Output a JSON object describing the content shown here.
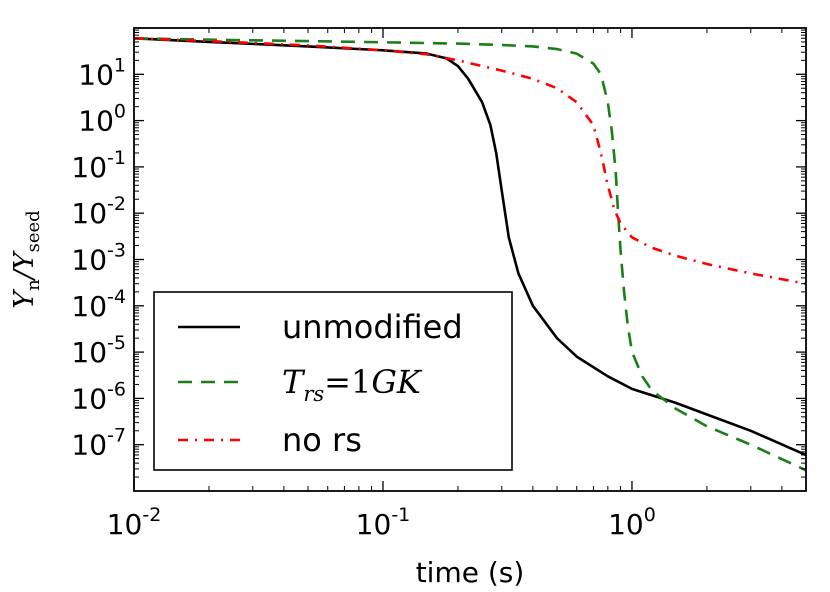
{
  "chart_data": {
    "type": "line",
    "xscale": "log",
    "yscale": "log",
    "xlim": [
      0.01,
      5.0
    ],
    "ylim": [
      1e-08,
      100
    ],
    "xlabel": "time (s)",
    "ylabel": {
      "var": "Y",
      "num_sub": "n",
      "slash": "/",
      "den_sub": "seed"
    },
    "x_ticks": [
      {
        "value": 0.01,
        "base": "10",
        "exp": "-2"
      },
      {
        "value": 0.1,
        "base": "10",
        "exp": "-1"
      },
      {
        "value": 1,
        "base": "10",
        "exp": "0"
      }
    ],
    "y_ticks": [
      {
        "value": 1e-07,
        "base": "10",
        "exp": "-7"
      },
      {
        "value": 1e-06,
        "base": "10",
        "exp": "-6"
      },
      {
        "value": 1e-05,
        "base": "10",
        "exp": "-5"
      },
      {
        "value": 0.0001,
        "base": "10",
        "exp": "-4"
      },
      {
        "value": 0.001,
        "base": "10",
        "exp": "-3"
      },
      {
        "value": 0.01,
        "base": "10",
        "exp": "-2"
      },
      {
        "value": 0.1,
        "base": "10",
        "exp": "-1"
      },
      {
        "value": 1,
        "base": "10",
        "exp": "0"
      },
      {
        "value": 10,
        "base": "10",
        "exp": "1"
      }
    ],
    "legend": {
      "position": "lower-left",
      "entries": [
        "unmodified",
        "T_rs=1GK",
        "no rs"
      ],
      "trs_label": {
        "var": "T",
        "sub": "rs",
        "eq": "=",
        "value": "1",
        "unit": "GK"
      }
    },
    "series": [
      {
        "name": "unmodified",
        "color": "#000000",
        "style": "solid",
        "x": [
          0.01,
          0.02,
          0.05,
          0.1,
          0.15,
          0.18,
          0.2,
          0.22,
          0.25,
          0.27,
          0.285,
          0.3,
          0.32,
          0.35,
          0.4,
          0.5,
          0.6,
          0.8,
          1.0,
          1.5,
          2.0,
          3.0,
          5.0
        ],
        "y": [
          60,
          50,
          40,
          33,
          28,
          22,
          15,
          8,
          2.5,
          0.8,
          0.2,
          0.03,
          0.003,
          0.0005,
          0.0001,
          2e-05,
          8e-06,
          3e-06,
          1.6e-06,
          8e-07,
          4.5e-07,
          2e-07,
          6e-08
        ]
      },
      {
        "name": "T_rs=1GK",
        "color": "#1a7f1a",
        "style": "dashed",
        "x": [
          0.01,
          0.02,
          0.05,
          0.1,
          0.2,
          0.3,
          0.4,
          0.5,
          0.6,
          0.7,
          0.75,
          0.8,
          0.83,
          0.86,
          0.88,
          0.9,
          0.93,
          0.96,
          1.0,
          1.1,
          1.2,
          1.5,
          2.0,
          3.0,
          5.0
        ],
        "y": [
          60,
          56,
          52,
          49,
          46,
          43,
          40,
          35,
          28,
          17,
          10,
          2.5,
          0.6,
          0.08,
          0.01,
          0.0015,
          0.0002,
          4e-05,
          1e-05,
          3e-06,
          1.5e-06,
          6e-07,
          2.5e-07,
          1e-07,
          2.8e-08
        ]
      },
      {
        "name": "no rs",
        "color": "#ff0000",
        "style": "dashdot",
        "x": [
          0.01,
          0.02,
          0.05,
          0.1,
          0.15,
          0.2,
          0.3,
          0.4,
          0.5,
          0.6,
          0.7,
          0.75,
          0.8,
          0.85,
          0.9,
          1.0,
          1.2,
          1.5,
          2.0,
          3.0,
          5.0
        ],
        "y": [
          60,
          52,
          42,
          33,
          27,
          20,
          12,
          8,
          5,
          2.5,
          0.8,
          0.2,
          0.04,
          0.012,
          0.006,
          0.003,
          0.0018,
          0.0012,
          0.0008,
          0.0005,
          0.0003
        ]
      }
    ]
  }
}
